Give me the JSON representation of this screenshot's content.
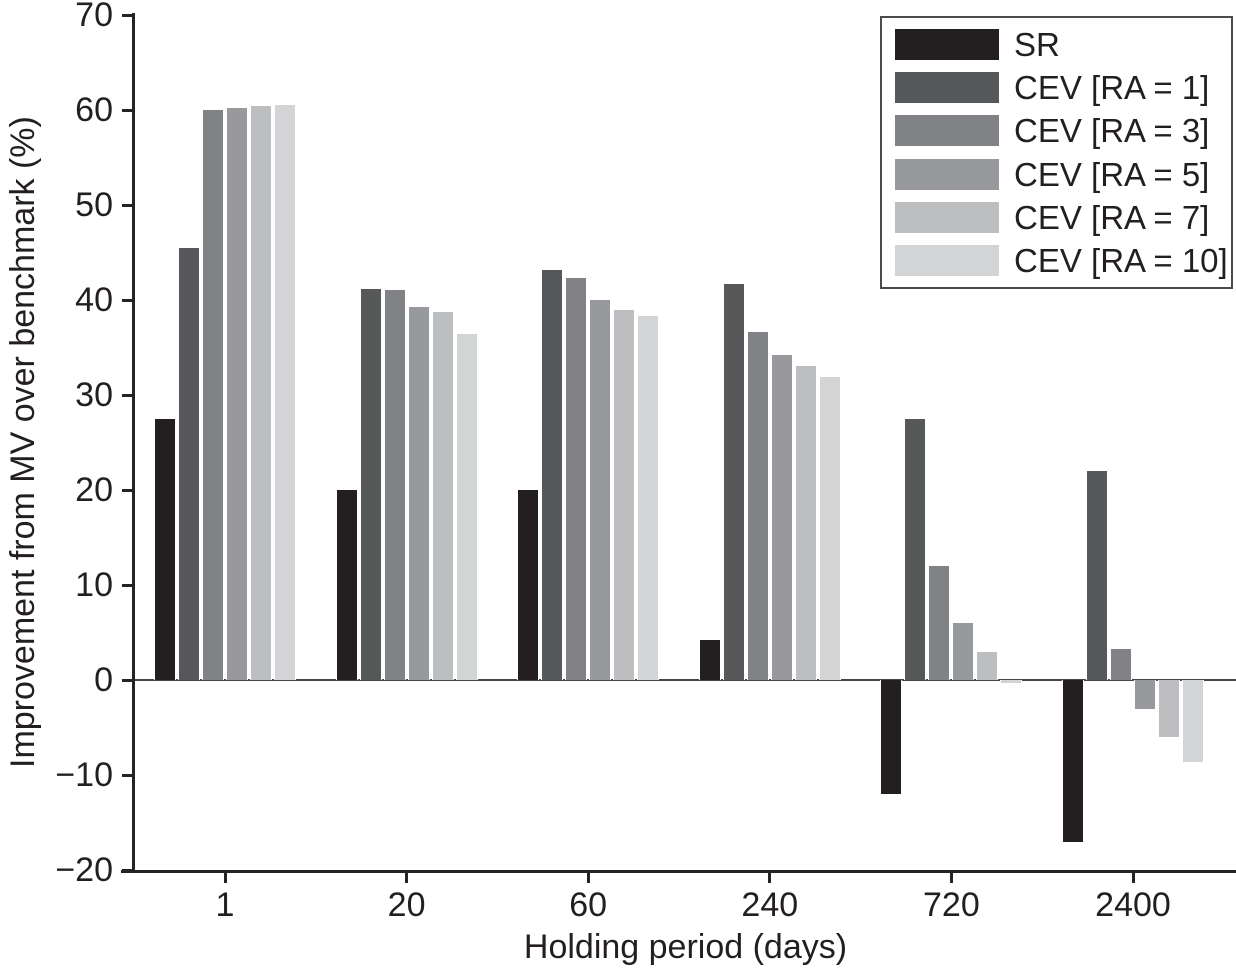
{
  "chart_data": {
    "type": "bar",
    "title": "",
    "xlabel": "Holding period (days)",
    "ylabel": "Improvement from MV over benchmark (%)",
    "categories": [
      "1",
      "20",
      "60",
      "240",
      "720",
      "2400"
    ],
    "series": [
      {
        "name": "SR",
        "color": "#231f20",
        "values": [
          27.5,
          20.0,
          20.0,
          4.2,
          -12.0,
          -17.0
        ]
      },
      {
        "name": "CEV [RA = 1]",
        "color": "#57585a",
        "values": [
          45.5,
          41.2,
          43.2,
          41.7,
          27.5,
          22.0
        ]
      },
      {
        "name": "CEV [RA = 3]",
        "color": "#808285",
        "values": [
          60.0,
          41.1,
          42.3,
          36.6,
          12.0,
          3.3
        ]
      },
      {
        "name": "CEV [RA = 5]",
        "color": "#98999c",
        "values": [
          60.2,
          39.3,
          40.0,
          34.2,
          6.0,
          -3.0
        ]
      },
      {
        "name": "CEV [RA = 7]",
        "color": "#bcbec0",
        "values": [
          60.4,
          38.7,
          38.9,
          33.1,
          3.0,
          -6.0
        ]
      },
      {
        "name": "CEV [RA = 10]",
        "color": "#d3d4d6",
        "values": [
          60.5,
          36.4,
          38.3,
          31.9,
          -0.3,
          -8.6
        ]
      }
    ],
    "ylim": [
      -20,
      70
    ],
    "yticks": [
      70,
      60,
      50,
      40,
      30,
      20,
      10,
      0,
      -10,
      -20
    ],
    "grid": false,
    "zero_line": true,
    "legend_position": "top-right",
    "axis_color": "#262324",
    "zero_line_color": "#454545",
    "background_color": "#ffffff"
  }
}
